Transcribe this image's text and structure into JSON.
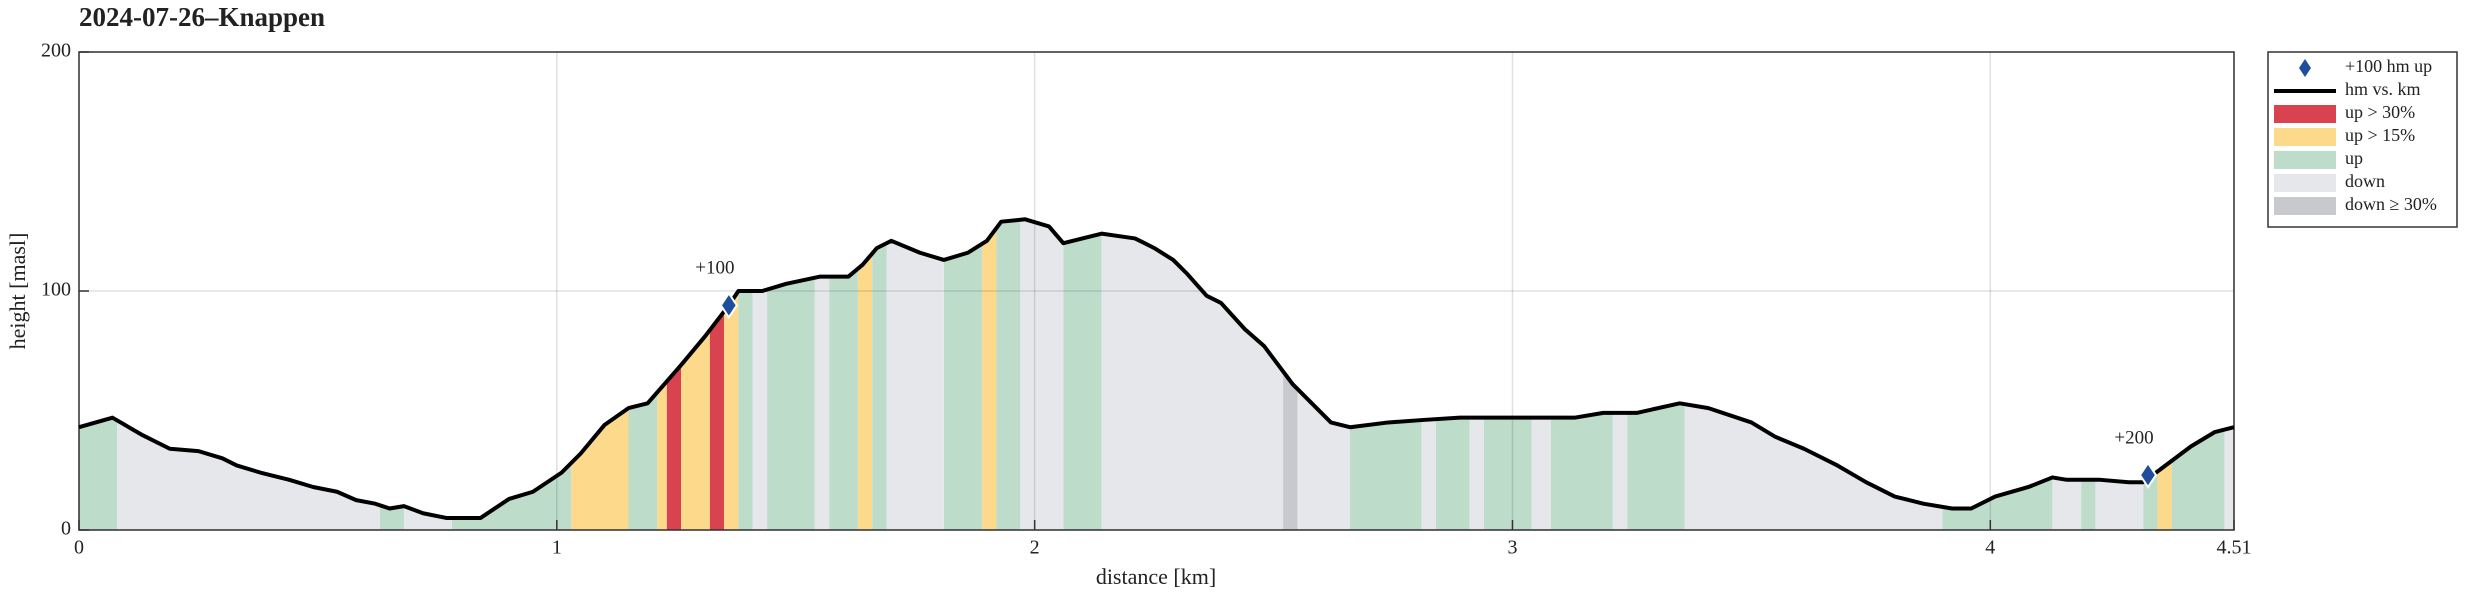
{
  "chart_data": {
    "type": "profile",
    "title": "2024-07-26–Knappen",
    "xlabel": "distance [km]",
    "ylabel": "height [masl]",
    "xlim": [
      0,
      4.51
    ],
    "ylim": [
      0,
      200
    ],
    "xticks": [
      0,
      1,
      2,
      3,
      4,
      4.51
    ],
    "yticks": [
      0,
      100,
      200
    ],
    "grid": true,
    "legend": "right",
    "markers": {
      "name": "+100 hm up",
      "color": "#1f4e9c",
      "x": [
        1.36,
        4.33
      ],
      "y": [
        94,
        23
      ],
      "labels": [
        "+100",
        "+200"
      ]
    },
    "line": {
      "name": "hm vs. km",
      "color": "#000000",
      "x": [
        0,
        0.07,
        0.13,
        0.19,
        0.25,
        0.3,
        0.33,
        0.38,
        0.44,
        0.49,
        0.54,
        0.58,
        0.62,
        0.65,
        0.68,
        0.72,
        0.77,
        0.84,
        0.9,
        0.95,
        1.01,
        1.05,
        1.1,
        1.15,
        1.19,
        1.26,
        1.31,
        1.36,
        1.38,
        1.43,
        1.48,
        1.55,
        1.61,
        1.64,
        1.67,
        1.7,
        1.76,
        1.81,
        1.86,
        1.9,
        1.93,
        1.98,
        2.03,
        2.06,
        2.14,
        2.21,
        2.25,
        2.29,
        2.32,
        2.36,
        2.39,
        2.44,
        2.48,
        2.54,
        2.58,
        2.62,
        2.66,
        2.74,
        2.81,
        2.89,
        2.94,
        3.08,
        3.13,
        3.19,
        3.26,
        3.35,
        3.41,
        3.5,
        3.55,
        3.61,
        3.68,
        3.74,
        3.8,
        3.86,
        3.92,
        3.96,
        4.01,
        4.08,
        4.13,
        4.16,
        4.23,
        4.29,
        4.32,
        4.36,
        4.42,
        4.47,
        4.51
      ],
      "y": [
        43,
        47,
        40,
        34,
        33,
        30,
        27,
        24,
        21,
        18,
        16,
        12.5,
        11,
        9,
        10,
        7,
        5,
        5,
        13,
        16,
        24,
        32,
        44,
        51,
        53,
        69,
        81,
        94,
        100,
        100,
        103,
        106,
        106,
        111,
        118,
        121,
        116,
        113,
        116,
        121,
        129,
        130,
        127,
        120,
        124,
        122,
        118,
        113,
        107,
        98,
        95,
        84,
        77,
        61,
        53,
        45,
        43,
        45,
        46,
        47,
        47,
        47,
        47,
        49,
        49,
        53,
        51,
        45,
        39,
        34,
        27,
        20,
        14,
        11,
        9,
        9,
        14,
        18,
        22,
        21,
        21,
        20,
        20,
        26,
        35,
        41,
        43
      ]
    },
    "bands": [
      {
        "name": "up > 30%",
        "color": "#d9434f",
        "ranges": [
          [
            1.23,
            1.26
          ],
          [
            1.32,
            1.35
          ]
        ]
      },
      {
        "name": "up > 15%",
        "color": "#fcd98b",
        "ranges": [
          [
            1.03,
            1.15
          ],
          [
            1.21,
            1.23
          ],
          [
            1.26,
            1.32
          ],
          [
            1.35,
            1.38
          ],
          [
            1.63,
            1.66
          ],
          [
            1.89,
            1.92
          ],
          [
            4.35,
            4.38
          ]
        ]
      },
      {
        "name": "up",
        "color": "#bedcca",
        "ranges": [
          [
            0,
            0.08
          ],
          [
            0.63,
            0.68
          ],
          [
            0.78,
            1.03
          ],
          [
            1.15,
            1.21
          ],
          [
            1.38,
            1.41
          ],
          [
            1.44,
            1.54
          ],
          [
            1.57,
            1.63
          ],
          [
            1.66,
            1.69
          ],
          [
            1.81,
            1.89
          ],
          [
            1.92,
            1.97
          ],
          [
            2.06,
            2.14
          ],
          [
            2.66,
            2.81
          ],
          [
            2.84,
            2.91
          ],
          [
            2.94,
            3.04
          ],
          [
            3.08,
            3.21
          ],
          [
            3.24,
            3.36
          ],
          [
            3.9,
            4.13
          ],
          [
            4.19,
            4.22
          ],
          [
            4.32,
            4.35
          ],
          [
            4.38,
            4.49
          ]
        ]
      },
      {
        "name": "down",
        "color": "#e6e7ea",
        "ranges": [
          [
            0.08,
            0.63
          ],
          [
            0.68,
            0.78
          ],
          [
            1.41,
            1.44
          ],
          [
            1.54,
            1.57
          ],
          [
            1.69,
            1.81
          ],
          [
            1.97,
            2.06
          ],
          [
            2.14,
            2.52
          ],
          [
            2.55,
            2.66
          ],
          [
            2.81,
            2.84
          ],
          [
            2.91,
            2.94
          ],
          [
            3.04,
            3.08
          ],
          [
            3.21,
            3.24
          ],
          [
            3.36,
            3.9
          ],
          [
            4.13,
            4.19
          ],
          [
            4.22,
            4.32
          ],
          [
            4.49,
            4.51
          ]
        ]
      },
      {
        "name": "down ≥ 30%",
        "color": "#c8c9cf",
        "ranges": [
          [
            2.52,
            2.55
          ]
        ]
      }
    ]
  }
}
